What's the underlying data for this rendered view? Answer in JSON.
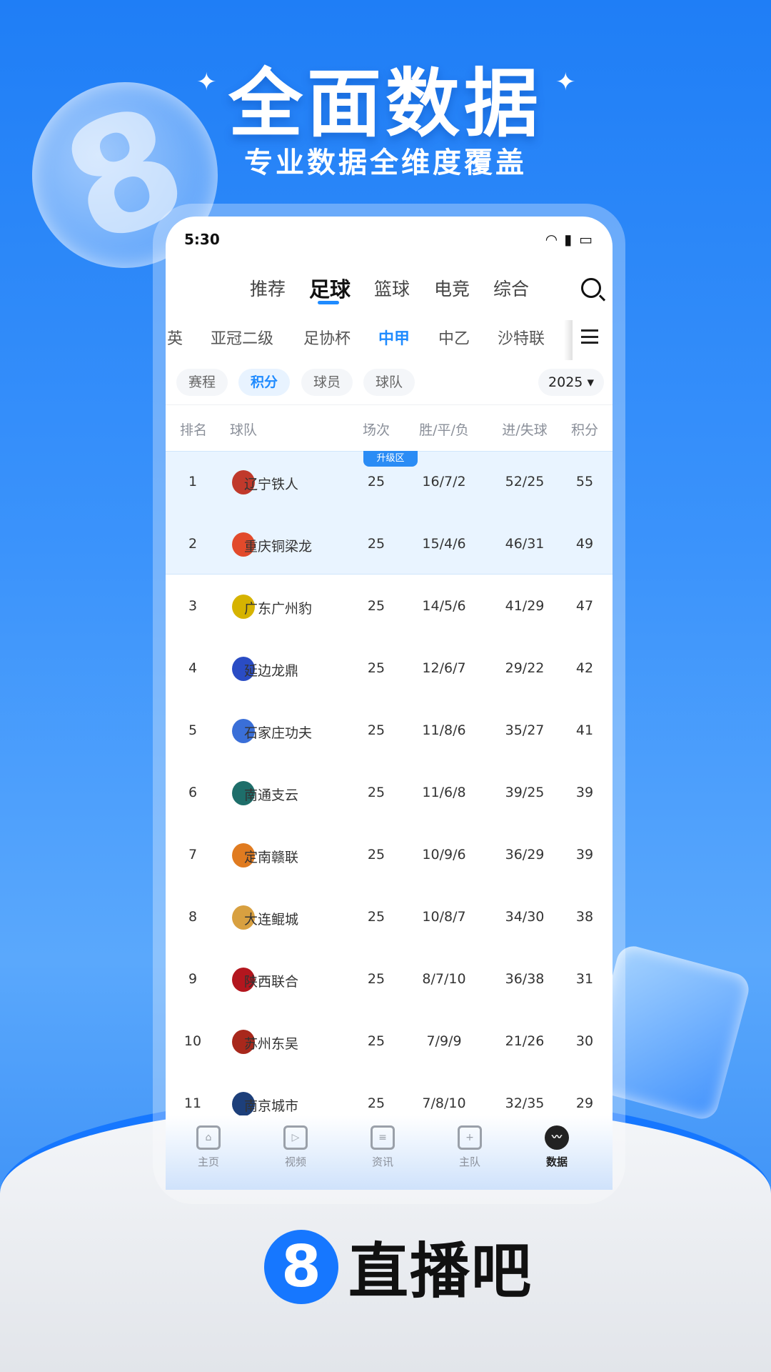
{
  "promo": {
    "headline": "全面数据",
    "subtitle": "专业数据全维度覆盖",
    "brand_mark": "8",
    "brand_name": "直播吧"
  },
  "status": {
    "time": "5:30"
  },
  "top_tabs": [
    {
      "label": "推荐"
    },
    {
      "label": "足球",
      "active": true
    },
    {
      "label": "篮球"
    },
    {
      "label": "电竞"
    },
    {
      "label": "综合"
    }
  ],
  "league_tabs": [
    {
      "label": "英"
    },
    {
      "label": "亚冠二级"
    },
    {
      "label": "足协杯"
    },
    {
      "label": "中甲",
      "active": true
    },
    {
      "label": "中乙"
    },
    {
      "label": "沙特联"
    }
  ],
  "chips": [
    {
      "label": "赛程"
    },
    {
      "label": "积分",
      "active": true
    },
    {
      "label": "球员"
    },
    {
      "label": "球队"
    }
  ],
  "season": "2025",
  "table": {
    "headers": {
      "rank": "排名",
      "team": "球队",
      "played": "场次",
      "wdl": "胜/平/负",
      "goals": "进/失球",
      "points": "积分"
    },
    "promotion_label": "升级区",
    "rows": [
      {
        "rank": "1",
        "team": "辽宁铁人",
        "played": "25",
        "wdl": "16/7/2",
        "goals": "52/25",
        "points": "55",
        "color": "#c0392b"
      },
      {
        "rank": "2",
        "team": "重庆铜梁龙",
        "played": "25",
        "wdl": "15/4/6",
        "goals": "46/31",
        "points": "49",
        "color": "#e24a2b"
      },
      {
        "rank": "3",
        "team": "广东广州豹",
        "played": "25",
        "wdl": "14/5/6",
        "goals": "41/29",
        "points": "47",
        "color": "#d6b300"
      },
      {
        "rank": "4",
        "team": "延边龙鼎",
        "played": "25",
        "wdl": "12/6/7",
        "goals": "29/22",
        "points": "42",
        "color": "#2a4cc4"
      },
      {
        "rank": "5",
        "team": "石家庄功夫",
        "played": "25",
        "wdl": "11/8/6",
        "goals": "35/27",
        "points": "41",
        "color": "#3a6fd8"
      },
      {
        "rank": "6",
        "team": "南通支云",
        "played": "25",
        "wdl": "11/6/8",
        "goals": "39/25",
        "points": "39",
        "color": "#1e6e6a"
      },
      {
        "rank": "7",
        "team": "定南赣联",
        "played": "25",
        "wdl": "10/9/6",
        "goals": "36/29",
        "points": "39",
        "color": "#e07b20"
      },
      {
        "rank": "8",
        "team": "大连鲲城",
        "played": "25",
        "wdl": "10/8/7",
        "goals": "34/30",
        "points": "38",
        "color": "#d8a040"
      },
      {
        "rank": "9",
        "team": "陕西联合",
        "played": "25",
        "wdl": "8/7/10",
        "goals": "36/38",
        "points": "31",
        "color": "#b3161e"
      },
      {
        "rank": "10",
        "team": "苏州东吴",
        "played": "25",
        "wdl": "7/9/9",
        "goals": "21/26",
        "points": "30",
        "color": "#a8281c"
      },
      {
        "rank": "11",
        "team": "南京城市",
        "played": "25",
        "wdl": "7/8/10",
        "goals": "32/35",
        "points": "29",
        "color": "#1d3f7a"
      }
    ]
  },
  "bottom_nav": [
    {
      "label": "主页",
      "icon": "home-icon"
    },
    {
      "label": "视频",
      "icon": "video-icon"
    },
    {
      "label": "资讯",
      "icon": "news-icon"
    },
    {
      "label": "主队",
      "icon": "team-shield-icon"
    },
    {
      "label": "数据",
      "icon": "data-chart-icon",
      "active": true
    }
  ],
  "colors": {
    "accent": "#1f8bff",
    "background": "#1f7ef6",
    "promotion_zone": "#e9f4ff"
  }
}
